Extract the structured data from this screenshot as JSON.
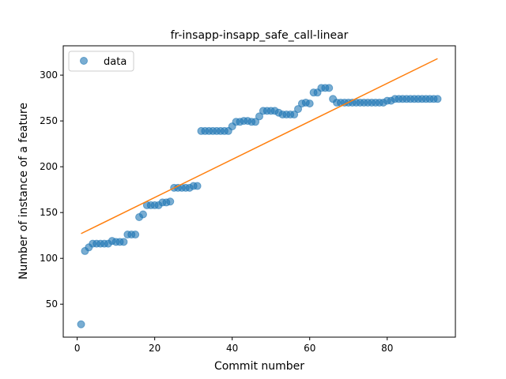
{
  "chart_data": {
    "type": "scatter",
    "title": "fr-insapp-insapp_safe_call-linear",
    "xlabel": "Commit number",
    "ylabel": "Number of instance of a feature",
    "xlim": [
      -3.6,
      97.6
    ],
    "ylim": [
      14,
      332
    ],
    "x_ticks": [
      0,
      20,
      40,
      60,
      80
    ],
    "y_ticks": [
      50,
      100,
      150,
      200,
      250,
      300
    ],
    "grid": false,
    "legend_position": "top-left",
    "series": [
      {
        "name": "data",
        "kind": "scatter",
        "color": "#1f77b4",
        "x": [
          1,
          2,
          3,
          4,
          5,
          6,
          7,
          8,
          9,
          10,
          11,
          12,
          13,
          14,
          15,
          16,
          17,
          18,
          19,
          20,
          21,
          22,
          23,
          24,
          25,
          26,
          27,
          28,
          29,
          30,
          31,
          32,
          33,
          34,
          35,
          36,
          37,
          38,
          39,
          40,
          41,
          42,
          43,
          44,
          45,
          46,
          47,
          48,
          49,
          50,
          51,
          52,
          53,
          54,
          55,
          56,
          57,
          58,
          59,
          60,
          61,
          62,
          63,
          64,
          65,
          66,
          67,
          68,
          69,
          70,
          71,
          72,
          73,
          74,
          75,
          76,
          77,
          78,
          79,
          80,
          81,
          82,
          83,
          84,
          85,
          86,
          87,
          88,
          89,
          90,
          91,
          92,
          93
        ],
        "y": [
          28,
          108,
          112,
          116,
          116,
          116,
          116,
          116,
          119,
          118,
          118,
          118,
          126,
          126,
          126,
          145,
          148,
          158,
          158,
          158,
          158,
          161,
          161,
          162,
          177,
          177,
          177,
          177,
          177,
          179,
          179,
          239,
          239,
          239,
          239,
          239,
          239,
          239,
          239,
          244,
          249,
          249,
          250,
          250,
          249,
          249,
          255,
          261,
          261,
          261,
          261,
          259,
          257,
          257,
          257,
          257,
          263,
          269,
          270,
          269,
          281,
          281,
          286,
          286,
          286,
          274,
          270,
          270,
          270,
          270,
          270,
          270,
          270,
          270,
          270,
          270,
          270,
          270,
          270,
          272,
          272,
          274,
          274,
          274,
          274,
          274,
          274,
          274,
          274,
          274,
          274,
          274,
          274
        ]
      },
      {
        "kind": "line",
        "color": "#ff7f0e",
        "x": [
          1,
          93
        ],
        "y": [
          127,
          318
        ]
      }
    ]
  }
}
